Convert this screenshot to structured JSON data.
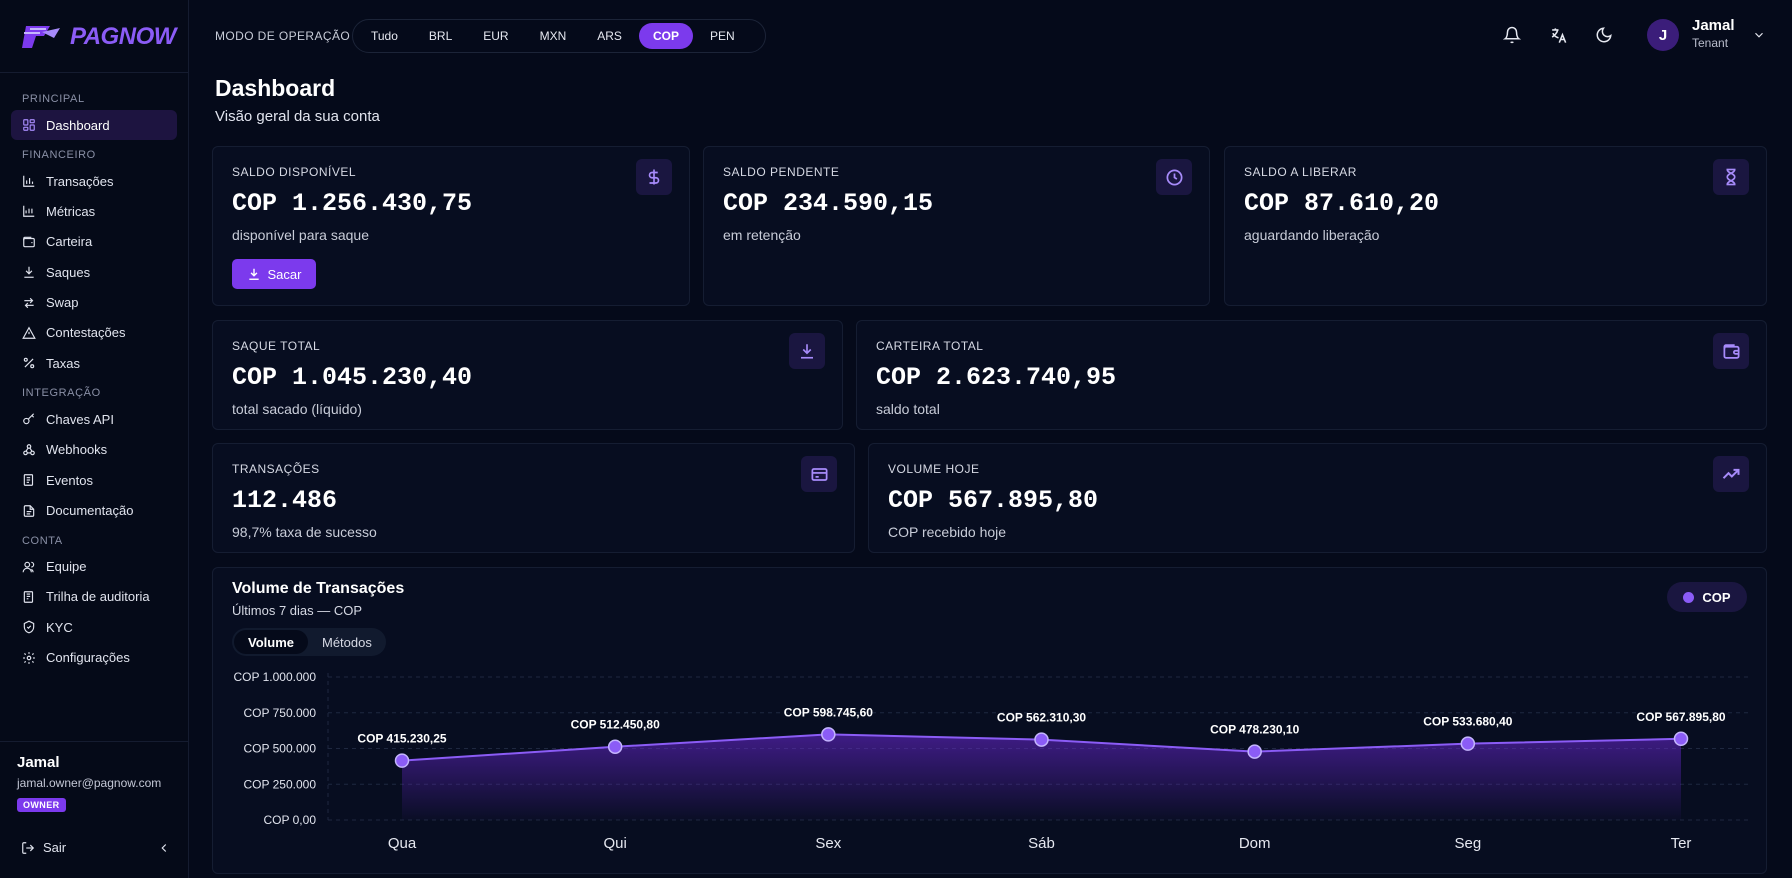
{
  "brand": {
    "name_a": "PAG",
    "name_b": "NOW"
  },
  "sidebar": {
    "sections": [
      {
        "label": "PRINCIPAL",
        "items": [
          {
            "label": "Dashboard",
            "icon": "dashboard-icon",
            "active": true
          }
        ]
      },
      {
        "label": "FINANCEIRO",
        "items": [
          {
            "label": "Transações",
            "icon": "bar-chart-icon"
          },
          {
            "label": "Métricas",
            "icon": "metrics-icon"
          },
          {
            "label": "Carteira",
            "icon": "wallet-icon"
          },
          {
            "label": "Saques",
            "icon": "download-icon"
          },
          {
            "label": "Swap",
            "icon": "swap-icon"
          },
          {
            "label": "Contestações",
            "icon": "warning-icon"
          },
          {
            "label": "Taxas",
            "icon": "percent-icon"
          }
        ]
      },
      {
        "label": "INTEGRAÇÃO",
        "items": [
          {
            "label": "Chaves API",
            "icon": "key-icon"
          },
          {
            "label": "Webhooks",
            "icon": "webhook-icon"
          },
          {
            "label": "Eventos",
            "icon": "events-icon"
          },
          {
            "label": "Documentação",
            "icon": "document-icon"
          }
        ]
      },
      {
        "label": "CONTA",
        "items": [
          {
            "label": "Equipe",
            "icon": "team-icon"
          },
          {
            "label": "Trilha de auditoria",
            "icon": "audit-icon"
          },
          {
            "label": "KYC",
            "icon": "shield-icon"
          },
          {
            "label": "Configurações",
            "icon": "gear-icon"
          }
        ]
      }
    ],
    "user": {
      "name": "Jamal",
      "email": "jamal.owner@pagnow.com",
      "role_badge": "OWNER"
    },
    "logout_label": "Sair"
  },
  "topbar": {
    "mode_label": "MODO DE OPERAÇÃO",
    "modes": [
      "Tudo",
      "BRL",
      "EUR",
      "MXN",
      "ARS",
      "COP",
      "PEN"
    ],
    "active_mode": "COP",
    "user": {
      "initial": "J",
      "name": "Jamal",
      "role": "Tenant"
    }
  },
  "page": {
    "title": "Dashboard",
    "subtitle": "Visão geral da sua conta"
  },
  "cards": {
    "saldo_disponivel": {
      "label": "SALDO DISPONÍVEL",
      "value": "COP 1.256.430,75",
      "desc": "disponível para saque",
      "button": "Sacar"
    },
    "saldo_pendente": {
      "label": "SALDO PENDENTE",
      "value": "COP 234.590,15",
      "desc": "em retenção"
    },
    "saldo_liberar": {
      "label": "SALDO A LIBERAR",
      "value": "COP 87.610,20",
      "desc": "aguardando liberação"
    },
    "saque_total": {
      "label": "SAQUE TOTAL",
      "value": "COP 1.045.230,40",
      "desc": "total sacado (líquido)"
    },
    "carteira_total": {
      "label": "CARTEIRA TOTAL",
      "value": "COP 2.623.740,95",
      "desc": "saldo total"
    },
    "transacoes": {
      "label": "TRANSAÇÕES",
      "value": "112.486",
      "desc": "98,7% taxa de sucesso"
    },
    "volume_hoje": {
      "label": "VOLUME HOJE",
      "value": "COP 567.895,80",
      "desc": "COP recebido hoje"
    }
  },
  "chart_panel": {
    "title": "Volume de Transações",
    "subtitle": "Últimos 7 dias — COP",
    "tabs": [
      "Volume",
      "Métodos"
    ],
    "active_tab": "Volume",
    "legend_label": "COP"
  },
  "chart_data": {
    "type": "area",
    "categories": [
      "Qua",
      "Qui",
      "Sex",
      "Sáb",
      "Dom",
      "Seg",
      "Ter"
    ],
    "series": [
      {
        "name": "COP",
        "values": [
          415230.25,
          512450.8,
          598745.6,
          562310.3,
          478230.1,
          533680.4,
          567895.8
        ]
      }
    ],
    "data_labels": [
      "COP 415.230,25",
      "COP 512.450,80",
      "COP 598.745,60",
      "COP 562.310,30",
      "COP 478.230,10",
      "COP 533.680,40",
      "COP 567.895,80"
    ],
    "y_ticks": [
      1000000,
      750000,
      500000,
      250000,
      0
    ],
    "y_tick_labels": [
      "COP 1.000.000",
      "COP 750.000",
      "COP 500.000",
      "COP 250.000",
      "COP 0,00"
    ],
    "ylim": [
      0,
      1000000
    ],
    "grid": true,
    "color": "#8b5cf6"
  },
  "colors": {
    "accent": "#7c3aed",
    "background": "#050a1a"
  }
}
